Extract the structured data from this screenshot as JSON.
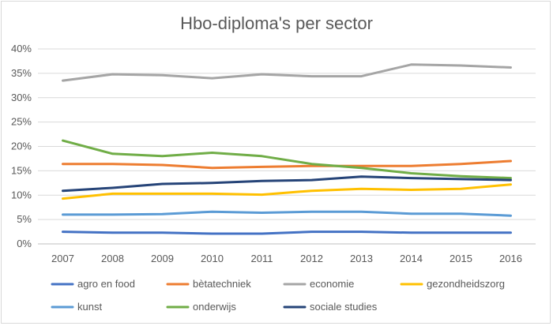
{
  "chart_data": {
    "type": "line",
    "title": "Hbo-diploma's per sector",
    "xlabel": "",
    "ylabel": "",
    "x": [
      "2007",
      "2008",
      "2009",
      "2010",
      "2011",
      "2012",
      "2013",
      "2014",
      "2015",
      "2016"
    ],
    "ylim": [
      0,
      40
    ],
    "yticks": [
      "0%",
      "5%",
      "10%",
      "15%",
      "20%",
      "25%",
      "30%",
      "35%",
      "40%"
    ],
    "grid": true,
    "legend_position": "bottom",
    "series": [
      {
        "name": "agro en food",
        "color": "#4472c4",
        "values": [
          2.5,
          2.3,
          2.3,
          2.1,
          2.1,
          2.5,
          2.5,
          2.3,
          2.3,
          2.3
        ]
      },
      {
        "name": "bètatechniek",
        "color": "#ed7d31",
        "values": [
          16.4,
          16.4,
          16.2,
          15.6,
          15.8,
          16.0,
          16.0,
          16.0,
          16.4,
          17.0
        ]
      },
      {
        "name": "economie",
        "color": "#a5a5a5",
        "values": [
          33.5,
          34.8,
          34.6,
          34.0,
          34.8,
          34.4,
          34.4,
          36.8,
          36.6,
          36.2
        ]
      },
      {
        "name": "gezondheidszorg",
        "color": "#ffc000",
        "values": [
          9.3,
          10.3,
          10.3,
          10.3,
          10.1,
          10.9,
          11.3,
          11.1,
          11.3,
          12.2
        ]
      },
      {
        "name": "kunst",
        "color": "#5b9bd5",
        "values": [
          6.0,
          6.0,
          6.1,
          6.6,
          6.4,
          6.6,
          6.6,
          6.2,
          6.2,
          5.8
        ]
      },
      {
        "name": "onderwijs",
        "color": "#70ad47",
        "values": [
          21.2,
          18.5,
          18.0,
          18.7,
          18.0,
          16.4,
          15.6,
          14.5,
          13.9,
          13.5
        ]
      },
      {
        "name": "sociale studies",
        "color": "#264478",
        "values": [
          10.9,
          11.5,
          12.3,
          12.5,
          12.9,
          13.1,
          13.8,
          13.5,
          13.3,
          13.1
        ]
      }
    ]
  }
}
